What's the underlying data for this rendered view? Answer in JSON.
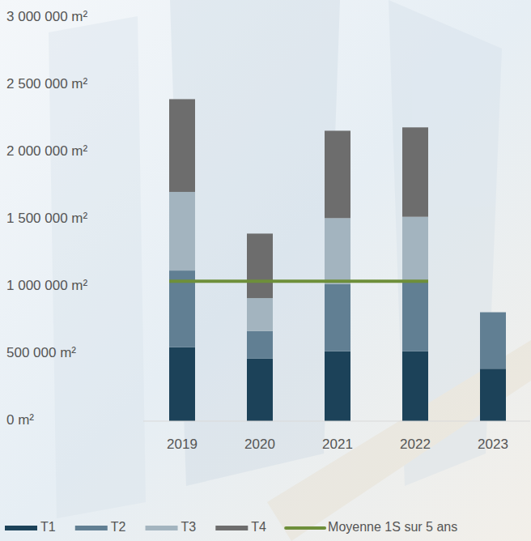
{
  "chart_data": {
    "type": "bar",
    "stacked": true,
    "grid": false,
    "legend": "bottom",
    "categories": [
      "2019",
      "2020",
      "2021",
      "2022",
      "2023"
    ],
    "series": [
      {
        "name": "T1",
        "color": "#1c4259",
        "values": [
          550000,
          465000,
          520000,
          520000,
          390000
        ]
      },
      {
        "name": "T2",
        "color": "#617f93",
        "values": [
          570000,
          205000,
          500000,
          515000,
          420000
        ]
      },
      {
        "name": "T3",
        "color": "#a3b4bf",
        "values": [
          585000,
          245000,
          490000,
          485000,
          null
        ]
      },
      {
        "name": "T4",
        "color": "#6d6d6d",
        "values": [
          690000,
          480000,
          650000,
          665000,
          null
        ]
      },
      {
        "name": "Moyenne 1S sur 5 ans",
        "type": "line",
        "color": "#6e8f3a",
        "values": [
          1040000,
          1040000,
          1040000,
          1040000,
          null
        ]
      }
    ],
    "ylim": [
      0,
      3000000
    ],
    "yticks": [
      {
        "value": 0,
        "label": "0 m²"
      },
      {
        "value": 500000,
        "label": "500 000 m²"
      },
      {
        "value": 1000000,
        "label": "1 000 000 m²"
      },
      {
        "value": 1500000,
        "label": "1 500 000 m²"
      },
      {
        "value": 2000000,
        "label": "2 000 000 m²"
      },
      {
        "value": 2500000,
        "label": "2 500 000 m²"
      },
      {
        "value": 3000000,
        "label": "3 000 000 m²"
      }
    ]
  }
}
